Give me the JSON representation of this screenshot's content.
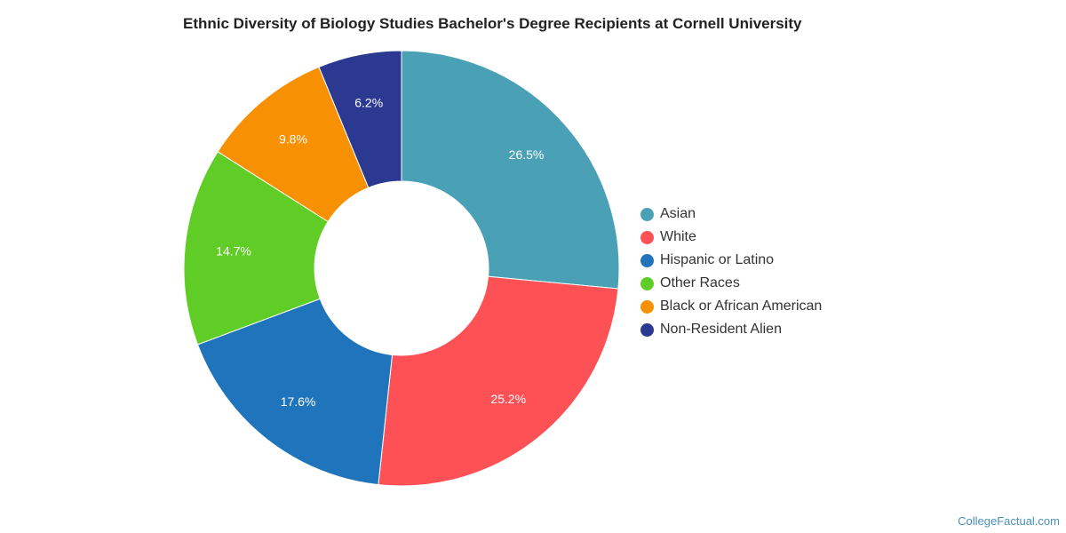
{
  "chart_data": {
    "type": "pie",
    "title": "Ethnic Diversity of Biology Studies Bachelor's Degree Recipients at Cornell University",
    "donut": true,
    "legend_position": "right",
    "slices": [
      {
        "name": "Asian",
        "value": 26.5,
        "label": "26.5%",
        "color": "#4aa0b5"
      },
      {
        "name": "White",
        "value": 25.2,
        "label": "25.2%",
        "color": "#fd5156"
      },
      {
        "name": "Hispanic or Latino",
        "value": 17.6,
        "label": "17.6%",
        "color": "#1f74bb"
      },
      {
        "name": "Other Races",
        "value": 14.7,
        "label": "14.7%",
        "color": "#60cd26"
      },
      {
        "name": "Black or African American",
        "value": 9.8,
        "label": "9.8%",
        "color": "#f79103"
      },
      {
        "name": "Non-Resident Alien",
        "value": 6.2,
        "label": "6.2%",
        "color": "#2b3990"
      }
    ]
  },
  "watermark": "CollegeFactual.com"
}
